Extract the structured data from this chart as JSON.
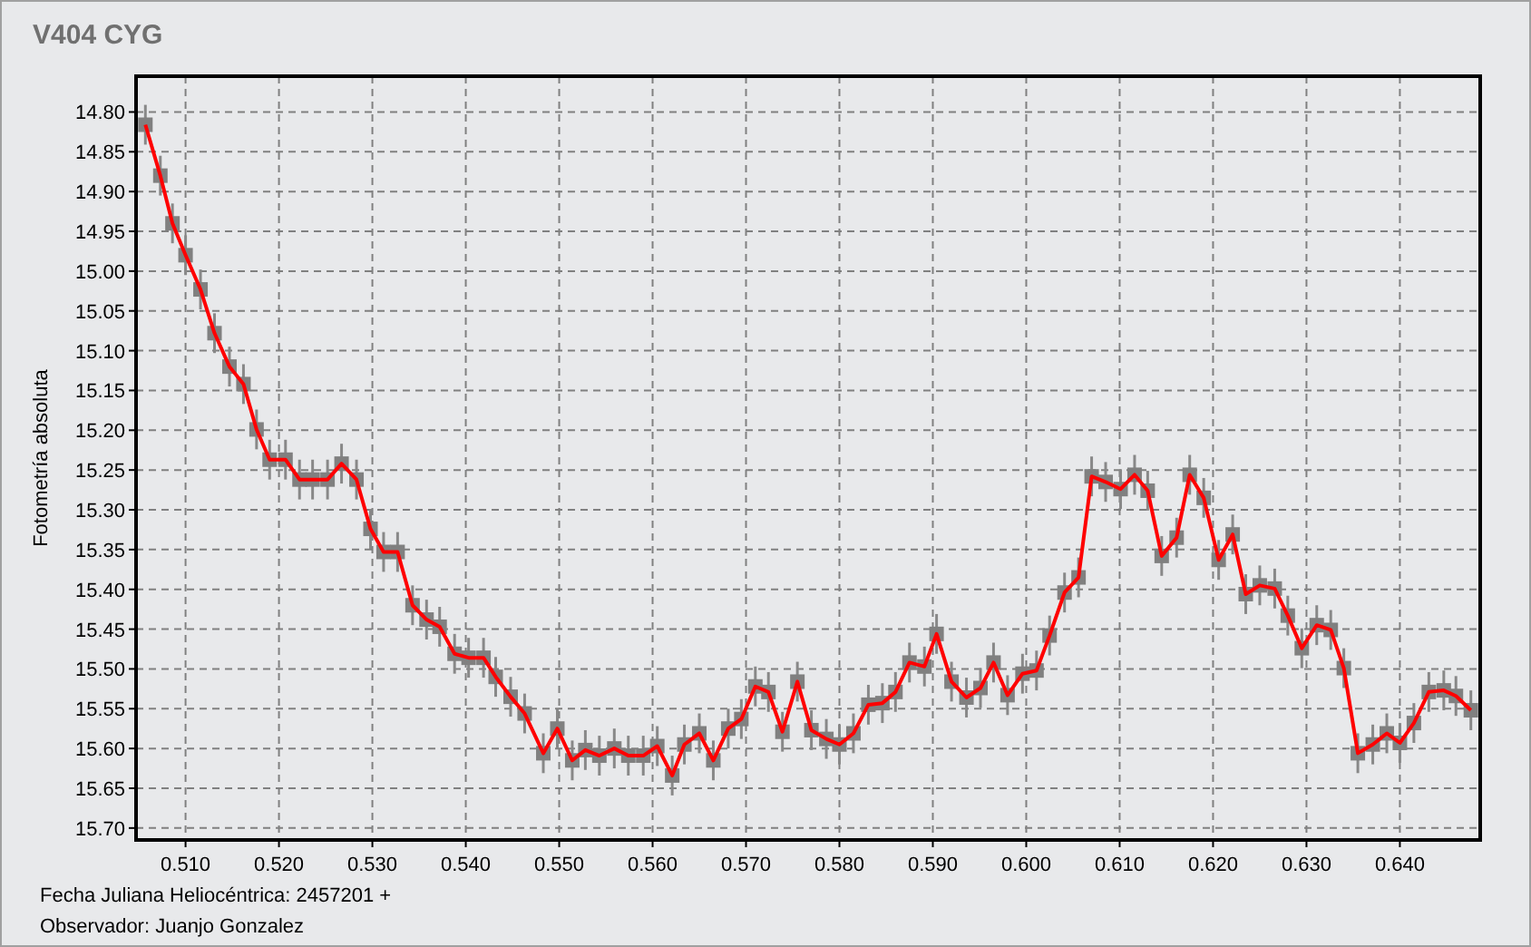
{
  "chart_data": {
    "type": "line",
    "title": "V404 CYG",
    "xlabel": "Fecha Juliana Heliocéntrica: 2457201 +",
    "ylabel": "Fotometría absoluta",
    "annotations": [
      "Observador: Juanjo Gonzalez"
    ],
    "xlim": [
      0.5047,
      0.6486
    ],
    "ylim": [
      15.715,
      14.755
    ],
    "xticks": [
      {
        "value": 0.51,
        "label": "0.510"
      },
      {
        "value": 0.52,
        "label": "0.520"
      },
      {
        "value": 0.53,
        "label": "0.530"
      },
      {
        "value": 0.54,
        "label": "0.540"
      },
      {
        "value": 0.55,
        "label": "0.550"
      },
      {
        "value": 0.56,
        "label": "0.560"
      },
      {
        "value": 0.57,
        "label": "0.570"
      },
      {
        "value": 0.58,
        "label": "0.580"
      },
      {
        "value": 0.59,
        "label": "0.590"
      },
      {
        "value": 0.6,
        "label": "0.600"
      },
      {
        "value": 0.61,
        "label": "0.610"
      },
      {
        "value": 0.62,
        "label": "0.620"
      },
      {
        "value": 0.63,
        "label": "0.630"
      },
      {
        "value": 0.64,
        "label": "0.640"
      }
    ],
    "yticks": [
      {
        "value": 14.8,
        "label": "14.80"
      },
      14.85,
      {
        "value": 14.9,
        "label": "14.90"
      },
      14.95,
      {
        "value": 15,
        "label": "15.00"
      },
      15.05,
      {
        "value": 15.1,
        "label": "15.10"
      },
      15.15,
      {
        "value": 15.2,
        "label": "15.20"
      },
      15.25,
      {
        "value": 15.3,
        "label": "15.30"
      },
      15.35,
      {
        "value": 15.4,
        "label": "15.40"
      },
      15.45,
      {
        "value": 15.5,
        "label": "15.50"
      },
      15.55,
      {
        "value": 15.6,
        "label": "15.60"
      },
      15.65,
      {
        "value": 15.7,
        "label": "15.70"
      }
    ],
    "grid": true,
    "marker": "square",
    "line_style": "solid",
    "series": [
      {
        "color": "#ff0000",
        "x": [
          0.5057,
          0.5073,
          0.5086,
          0.51,
          0.5116,
          0.5131,
          0.5147,
          0.5162,
          0.5176,
          0.519,
          0.5207,
          0.5222,
          0.5236,
          0.5252,
          0.5267,
          0.5283,
          0.5298,
          0.5312,
          0.5327,
          0.5343,
          0.5358,
          0.5372,
          0.5388,
          0.5403,
          0.5419,
          0.5432,
          0.5448,
          0.5463,
          0.5483,
          0.5498,
          0.5514,
          0.5528,
          0.5543,
          0.5559,
          0.5574,
          0.559,
          0.5605,
          0.5621,
          0.5634,
          0.565,
          0.5665,
          0.5681,
          0.5695,
          0.571,
          0.5724,
          0.5739,
          0.5755,
          0.577,
          0.5786,
          0.58,
          0.5815,
          0.5831,
          0.5846,
          0.586,
          0.5875,
          0.5891,
          0.5904,
          0.592,
          0.5936,
          0.5951,
          0.5965,
          0.598,
          0.5996,
          0.6011,
          0.6025,
          0.6041,
          0.6056,
          0.607,
          0.6085,
          0.6101,
          0.6116,
          0.613,
          0.6145,
          0.6161,
          0.6175,
          0.619,
          0.6206,
          0.6221,
          0.6235,
          0.625,
          0.6266,
          0.628,
          0.6295,
          0.6311,
          0.6326,
          0.634,
          0.6355,
          0.6371,
          0.6386,
          0.64,
          0.6415,
          0.6431,
          0.6447,
          0.646,
          0.6476
        ],
        "values": [
          14.816,
          14.88,
          14.94,
          14.98,
          15.023,
          15.078,
          15.12,
          15.142,
          15.199,
          15.237,
          15.237,
          15.262,
          15.262,
          15.262,
          15.242,
          15.262,
          15.324,
          15.353,
          15.353,
          15.42,
          15.438,
          15.447,
          15.481,
          15.486,
          15.486,
          15.51,
          15.535,
          15.556,
          15.606,
          15.575,
          15.615,
          15.602,
          15.609,
          15.6,
          15.609,
          15.609,
          15.597,
          15.634,
          15.595,
          15.581,
          15.615,
          15.575,
          15.563,
          15.522,
          15.529,
          15.579,
          15.516,
          15.577,
          15.588,
          15.595,
          15.581,
          15.545,
          15.543,
          15.529,
          15.492,
          15.497,
          15.456,
          15.516,
          15.536,
          15.524,
          15.492,
          15.533,
          15.506,
          15.502,
          15.458,
          15.404,
          15.385,
          15.258,
          15.265,
          15.274,
          15.256,
          15.276,
          15.358,
          15.335,
          15.256,
          15.285,
          15.363,
          15.331,
          15.406,
          15.395,
          15.399,
          15.433,
          15.474,
          15.445,
          15.451,
          15.499,
          15.606,
          15.595,
          15.581,
          15.593,
          15.568,
          15.529,
          15.527,
          15.534,
          15.552
        ],
        "errors": [
          0.025,
          0.025,
          0.025,
          0.025,
          0.025,
          0.025,
          0.025,
          0.025,
          0.025,
          0.025,
          0.025,
          0.025,
          0.025,
          0.025,
          0.025,
          0.025,
          0.025,
          0.025,
          0.025,
          0.025,
          0.025,
          0.025,
          0.025,
          0.025,
          0.025,
          0.025,
          0.025,
          0.025,
          0.025,
          0.025,
          0.025,
          0.025,
          0.025,
          0.025,
          0.025,
          0.025,
          0.025,
          0.025,
          0.025,
          0.025,
          0.025,
          0.025,
          0.025,
          0.025,
          0.025,
          0.025,
          0.025,
          0.025,
          0.025,
          0.025,
          0.025,
          0.025,
          0.025,
          0.025,
          0.025,
          0.025,
          0.025,
          0.025,
          0.025,
          0.025,
          0.025,
          0.025,
          0.025,
          0.025,
          0.025,
          0.025,
          0.025,
          0.025,
          0.025,
          0.025,
          0.025,
          0.025,
          0.025,
          0.025,
          0.025,
          0.025,
          0.025,
          0.025,
          0.025,
          0.025,
          0.025,
          0.025,
          0.025,
          0.025,
          0.025,
          0.025,
          0.025,
          0.025,
          0.025,
          0.025,
          0.025,
          0.025,
          0.025,
          0.025,
          0.025
        ]
      }
    ]
  }
}
